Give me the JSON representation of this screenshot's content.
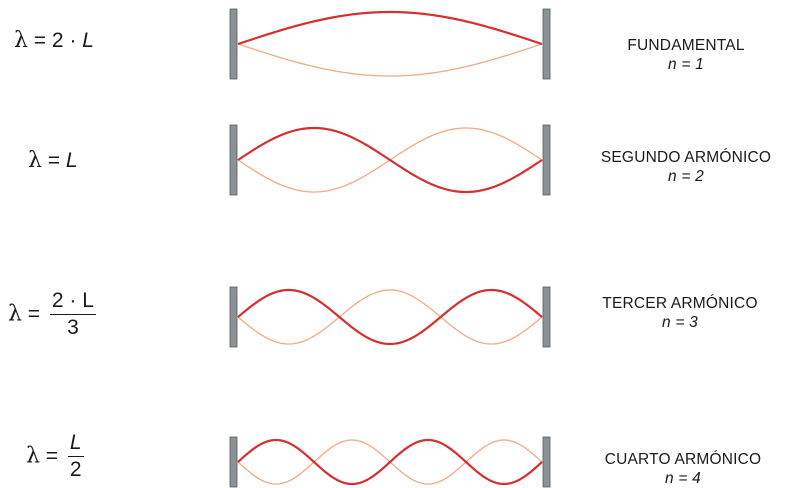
{
  "harmonics": [
    {
      "name": "FUNDAMENTAL",
      "n_label": "n = 1",
      "formula": {
        "lambda": "λ",
        "eq": "=",
        "coef": "2",
        "dot": "·",
        "var": "L"
      },
      "loops": 1
    },
    {
      "name": "SEGUNDO ARMÓNICO",
      "n_label": "n = 2",
      "formula": {
        "lambda": "λ",
        "eq": "=",
        "var": "L"
      },
      "loops": 2
    },
    {
      "name": "TERCER ARMÓNICO",
      "n_label": "n = 3",
      "formula": {
        "lambda": "λ",
        "eq": "=",
        "num": "2 · L",
        "den": "3"
      },
      "loops": 3
    },
    {
      "name": "CUARTO ARMÓNICO",
      "n_label": "n = 4",
      "formula": {
        "lambda": "λ",
        "eq": "=",
        "num": "L",
        "den": "2"
      },
      "loops": 4
    }
  ],
  "colors": {
    "wave_main": "#d62f2f",
    "wave_light": "#f2a98a",
    "wall": "#8a9296",
    "text": "#1a1a1a"
  }
}
